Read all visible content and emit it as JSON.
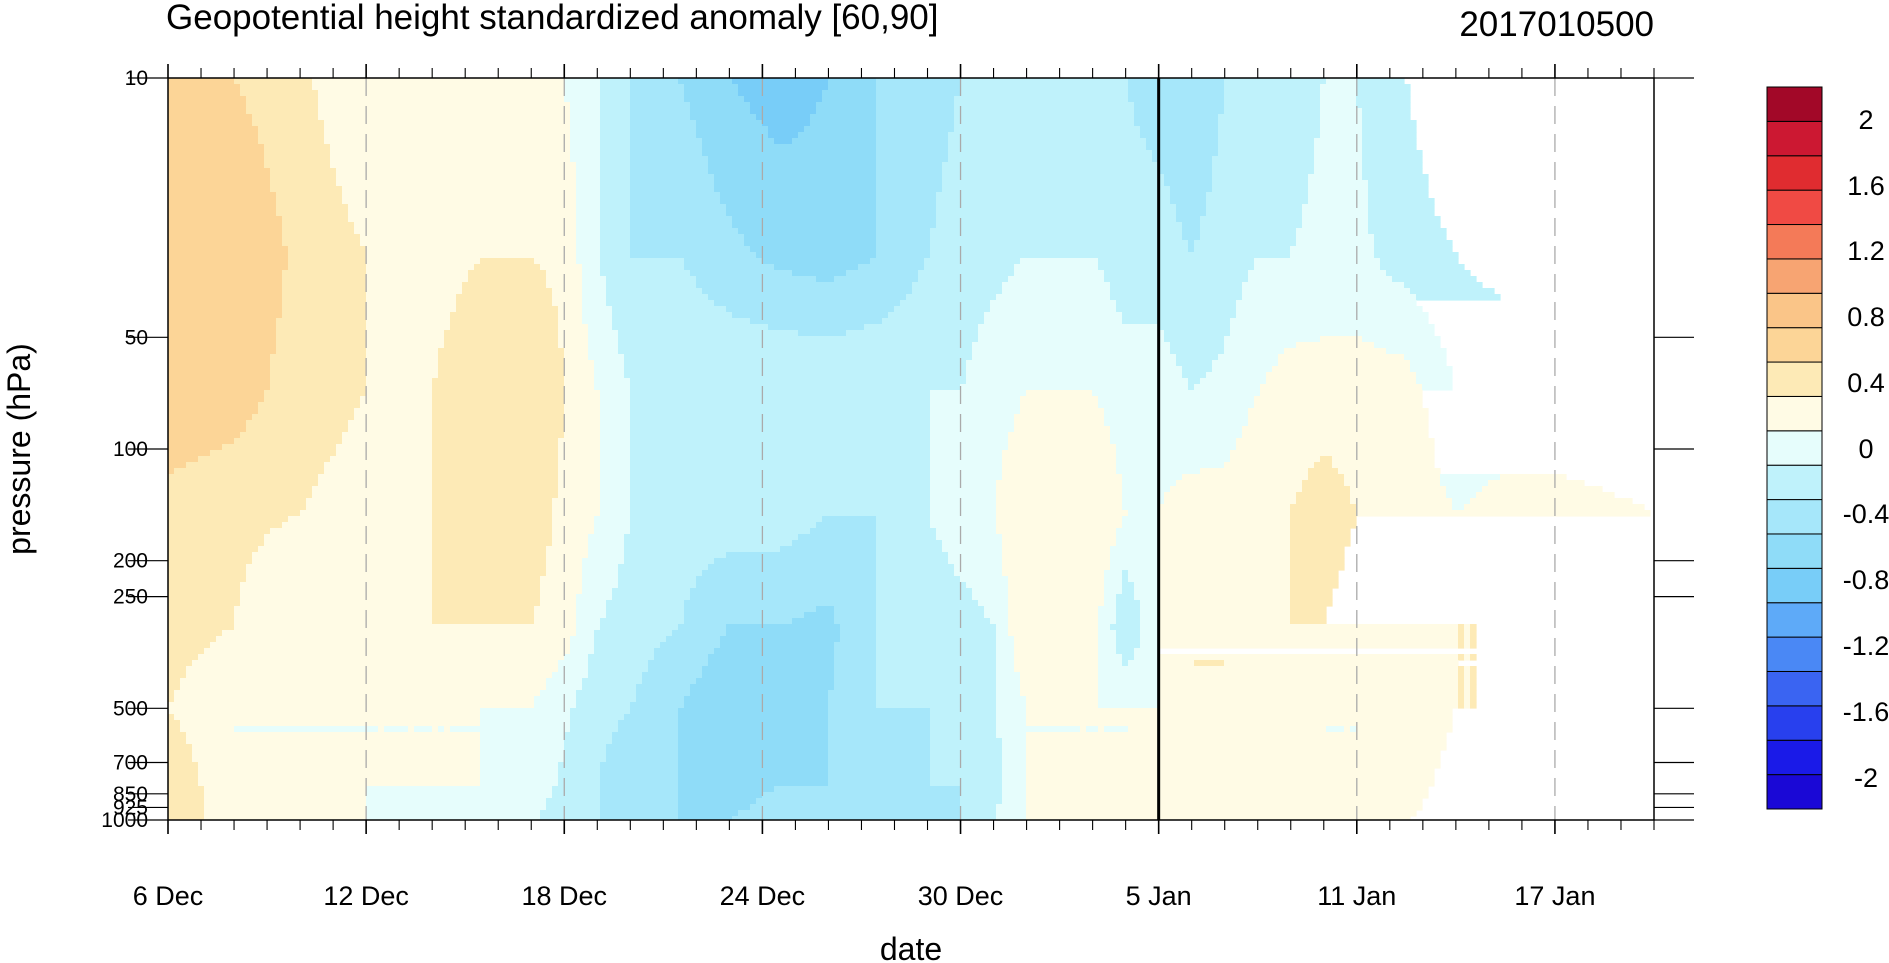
{
  "chart_data": {
    "type": "heatmap",
    "title": "Geopotential height standardized anomaly [60,90]",
    "subtitle": "2017010500",
    "xlabel": "date",
    "ylabel": "pressure (hPa)",
    "x_ticks": [
      {
        "day": 0,
        "label": "6 Dec"
      },
      {
        "day": 6,
        "label": "12 Dec"
      },
      {
        "day": 12,
        "label": "18 Dec"
      },
      {
        "day": 18,
        "label": "24 Dec"
      },
      {
        "day": 24,
        "label": "30 Dec"
      },
      {
        "day": 30,
        "label": "5 Jan"
      },
      {
        "day": 36,
        "label": "11 Jan"
      },
      {
        "day": 42,
        "label": "17 Jan"
      }
    ],
    "x_range_days": [
      0,
      45
    ],
    "current_date_day": 30,
    "y_ticks": [
      {
        "p": 10,
        "label": "10"
      },
      {
        "p": 50,
        "label": "50"
      },
      {
        "p": 100,
        "label": "100"
      },
      {
        "p": 200,
        "label": "200"
      },
      {
        "p": 250,
        "label": "250"
      },
      {
        "p": 500,
        "label": "500"
      },
      {
        "p": 700,
        "label": "700"
      },
      {
        "p": 850,
        "label": "850"
      },
      {
        "p": 925,
        "label": "925"
      },
      {
        "p": 1000,
        "label": "1000"
      }
    ],
    "y_scale": "log",
    "y_range_hpa": [
      10,
      1000
    ],
    "levels": [
      -2,
      -1.8,
      -1.6,
      -1.4,
      -1.2,
      -1,
      -0.8,
      -0.6,
      -0.4,
      -0.2,
      0,
      0.2,
      0.4,
      0.6,
      0.8,
      1,
      1.2,
      1.4,
      1.6,
      1.8,
      2
    ],
    "colorbar_colors": [
      "#1a08d6",
      "#1a1ae8",
      "#2840ee",
      "#3a64f2",
      "#4a88f5",
      "#5eaaf8",
      "#78cdf8",
      "#8fdcf8",
      "#a6e7fa",
      "#bff2fb",
      "#e6fdfc",
      "#fffbe5",
      "#fdeab6",
      "#fcd597",
      "#fac588",
      "#f7a472",
      "#f47a58",
      "#f04a44",
      "#e02c30",
      "#cc1832",
      "#a20828"
    ],
    "colorbar_labels": [
      "2",
      "1.6",
      "1.2",
      "0.8",
      "0.4",
      "0",
      "-0.4",
      "-0.8",
      "-1.2",
      "-1.6",
      "-2"
    ],
    "grid": {
      "columns": [
        {
          "day": 0.0,
          "values": [
            0.6,
            0.6,
            0.7,
            0.4,
            0.4,
            0.3,
            0.5,
            0.5
          ]
        },
        {
          "day": 2.0,
          "values": [
            0.5,
            0.7,
            0.6,
            0.35,
            0.3,
            0.1,
            0.1,
            0.1
          ]
        },
        {
          "day": 4.0,
          "values": [
            0.35,
            0.45,
            0.4,
            0.3,
            0.1,
            0.1,
            0.1,
            0.1
          ]
        },
        {
          "day": 6.0,
          "values": [
            0.1,
            0.3,
            0.3,
            0.2,
            0.1,
            0.1,
            0.1,
            0.1
          ]
        },
        {
          "day": 8.0,
          "values": [
            0.1,
            0.2,
            0.3,
            0.3,
            0.3,
            0.1,
            0.1,
            0.05
          ]
        },
        {
          "day": 9.5,
          "values": [
            0.2,
            0.3,
            0.5,
            0.5,
            0.3,
            0.1,
            0.1,
            0.05
          ]
        },
        {
          "day": 11.0,
          "values": [
            0.3,
            0.3,
            0.5,
            0.4,
            0.3,
            0.1,
            0.05,
            -0.05
          ]
        },
        {
          "day": 12.0,
          "values": [
            0.1,
            0.25,
            0.3,
            0.25,
            0.2,
            -0.05,
            -0.15,
            -0.25
          ]
        },
        {
          "day": 13.0,
          "values": [
            -0.1,
            -0.1,
            0.1,
            0.1,
            -0.1,
            -0.25,
            -0.3,
            -0.3
          ]
        },
        {
          "day": 14.0,
          "values": [
            -0.3,
            -0.3,
            -0.1,
            -0.1,
            -0.2,
            -0.3,
            -0.4,
            -0.5
          ]
        },
        {
          "day": 15.5,
          "values": [
            -0.5,
            -0.3,
            -0.1,
            -0.2,
            -0.3,
            -0.5,
            -0.5,
            -0.5
          ]
        },
        {
          "day": 17.0,
          "values": [
            -0.7,
            -0.45,
            -0.1,
            -0.2,
            -0.5,
            -0.7,
            -0.6,
            -0.5
          ]
        },
        {
          "day": 18.5,
          "values": [
            -0.8,
            -0.55,
            -0.1,
            -0.2,
            -0.5,
            -0.6,
            -0.5,
            -0.4
          ]
        },
        {
          "day": 20.0,
          "values": [
            -0.7,
            -0.6,
            -0.1,
            -0.3,
            -0.55,
            -0.5,
            -0.5,
            -0.5
          ]
        },
        {
          "day": 21.5,
          "values": [
            -0.5,
            -0.5,
            -0.1,
            -0.3,
            -0.3,
            -0.3,
            -0.4,
            -0.5
          ]
        },
        {
          "day": 23.0,
          "values": [
            -0.4,
            -0.3,
            -0.1,
            -0.1,
            -0.3,
            -0.3,
            -0.3,
            -0.4
          ]
        },
        {
          "day": 24.0,
          "values": [
            -0.3,
            -0.2,
            -0.1,
            0.05,
            -0.2,
            -0.2,
            -0.3,
            -0.3
          ]
        },
        {
          "day": 25.0,
          "values": [
            -0.25,
            -0.15,
            0.0,
            0.1,
            -0.1,
            -0.1,
            -0.2,
            -0.1
          ]
        },
        {
          "day": 26.0,
          "values": [
            -0.2,
            -0.1,
            0.1,
            0.3,
            0.3,
            0.1,
            0.1,
            0.1
          ]
        },
        {
          "day": 27.0,
          "values": [
            -0.2,
            -0.1,
            0.1,
            0.3,
            0.3,
            0.1,
            0.1,
            0.1
          ]
        },
        {
          "day": 28.0,
          "values": [
            -0.2,
            -0.1,
            0.1,
            0.3,
            0.2,
            0.1,
            0.1,
            0.1
          ]
        },
        {
          "day": 29.0,
          "values": [
            -0.3,
            -0.2,
            0.0,
            0.1,
            -0.3,
            0.1,
            0.1,
            0.2
          ]
        },
        {
          "day": 30.0,
          "values": [
            -0.4,
            -0.2,
            0.0,
            0.1,
            0.1,
            0.1,
            0.2,
            0.3
          ]
        },
        {
          "day": 31.0,
          "values": [
            -0.5,
            -0.3,
            -0.1,
            0.2,
            0.3,
            0.3,
            0.2,
            0.1
          ]
        },
        {
          "day": 32.0,
          "values": [
            -0.3,
            -0.2,
            -0.05,
            0.2,
            0.3,
            0.3,
            0.1,
            0.1
          ]
        },
        {
          "day": 33.0,
          "values": [
            -0.2,
            -0.1,
            0.1,
            0.3,
            0.3,
            0.2,
            0.1,
            0.1
          ]
        },
        {
          "day": 34.0,
          "values": [
            -0.2,
            -0.1,
            0.2,
            0.3,
            0.3,
            0.3,
            0.1,
            0.1
          ]
        },
        {
          "day": 35.0,
          "values": [
            -0.1,
            -0.05,
            0.2,
            0.4,
            0.3,
            0.1,
            0.1,
            0.1
          ]
        },
        {
          "day": 36.0,
          "values": [
            -0.1,
            -0.05,
            0.2,
            0.3,
            0.2,
            0.1,
            0.1,
            0.1
          ]
        },
        {
          "day": 37.5,
          "values": [
            -0.3,
            -0.2,
            0.2,
            0.25,
            0.2,
            0.1,
            0.2,
            0.3
          ]
        },
        {
          "day": 39.0,
          "values": [
            -0.5,
            -0.3,
            -0.1,
            0.1,
            0.3,
            0.3,
            0.4,
            0.4
          ]
        },
        {
          "day": 40.5,
          "values": [
            -0.5,
            -0.4,
            -0.1,
            0.2,
            0.3,
            0.3,
            0.5,
            0.5
          ]
        },
        {
          "day": 42.0,
          "values": [
            -0.5,
            -0.4,
            -0.1,
            0.2,
            0.3,
            0.3,
            0.4,
            0.5
          ]
        },
        {
          "day": 45.0,
          "values": [
            -0.4,
            -0.4,
            -0.1,
            0.1,
            0.3,
            0.3,
            0.3,
            0.3
          ]
        }
      ],
      "levels_hpa": [
        10,
        30,
        70,
        150,
        300,
        500,
        800,
        1000
      ]
    }
  }
}
